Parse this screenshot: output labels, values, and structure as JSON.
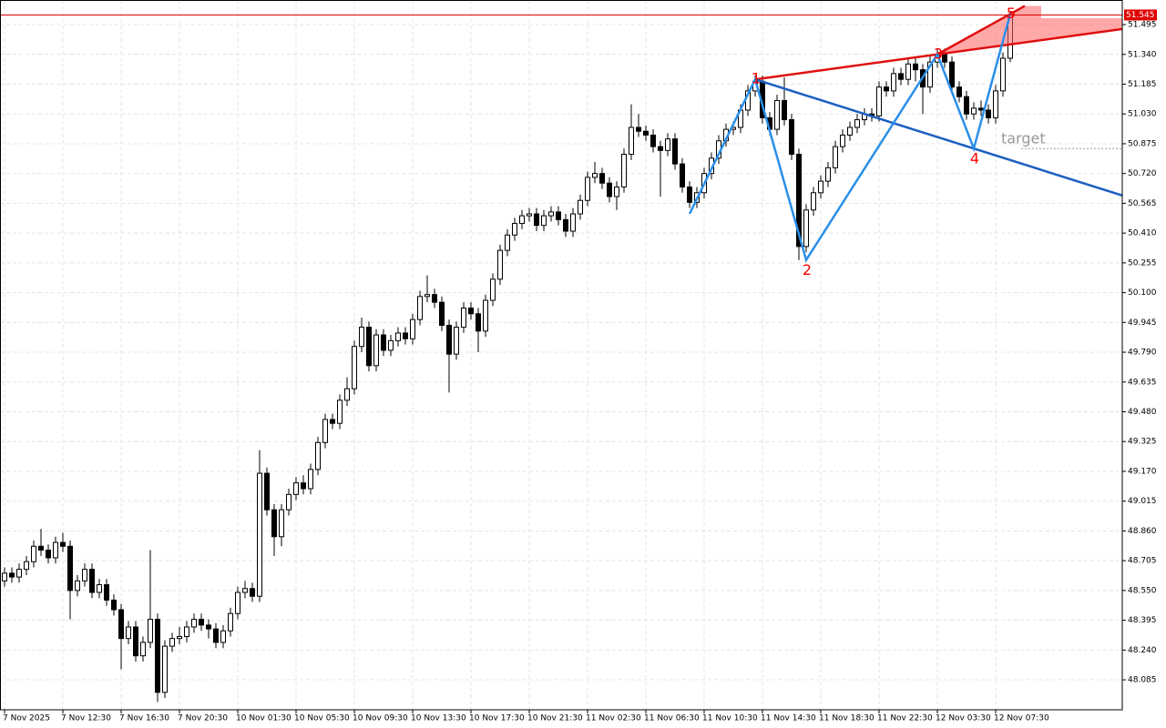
{
  "chart_data": {
    "type": "candlestick",
    "categories": [
      "7 Nov 2025",
      null,
      null,
      null,
      null,
      null,
      null,
      null,
      "7 Nov 12:30",
      null,
      null,
      null,
      null,
      null,
      null,
      null,
      "7 Nov 16:30",
      null,
      null,
      null,
      null,
      null,
      null,
      null,
      "7 Nov 20:30",
      null,
      null,
      null,
      null,
      null,
      null,
      null,
      "10 Nov 01:30",
      null,
      null,
      null,
      null,
      null,
      null,
      null,
      "10 Nov 05:30",
      null,
      null,
      null,
      null,
      null,
      null,
      null,
      "10 Nov 09:30",
      null,
      null,
      null,
      null,
      null,
      null,
      null,
      "10 Nov 13:30",
      null,
      null,
      null,
      null,
      null,
      null,
      null,
      "10 Nov 17:30",
      null,
      null,
      null,
      null,
      null,
      null,
      null,
      "10 Nov 21:30",
      null,
      null,
      null,
      null,
      null,
      null,
      null,
      "11 Nov 02:30",
      null,
      null,
      null,
      null,
      null,
      null,
      null,
      "11 Nov 06:30",
      null,
      null,
      null,
      null,
      null,
      null,
      null,
      "11 Nov 10:30",
      null,
      null,
      null,
      null,
      null,
      null,
      null,
      "11 Nov 14:30",
      null,
      null,
      null,
      null,
      null,
      null,
      null,
      "11 Nov 18:30",
      null,
      null,
      null,
      null,
      null,
      null,
      null,
      "11 Nov 22:30",
      null,
      null,
      null,
      null,
      null,
      null,
      null,
      "12 Nov 03:30",
      null,
      null,
      null,
      null,
      null,
      null,
      null,
      "12 Nov 07:30",
      null,
      null
    ],
    "open": [
      48.6,
      48.64,
      48.62,
      48.66,
      48.7,
      48.78,
      48.76,
      48.72,
      48.8,
      48.78,
      48.55,
      48.6,
      48.66,
      48.54,
      48.58,
      48.5,
      48.45,
      48.3,
      48.36,
      48.21,
      48.28,
      48.4,
      48.02,
      48.26,
      48.3,
      48.31,
      48.36,
      48.4,
      48.37,
      48.35,
      48.28,
      48.34,
      48.43,
      48.54,
      48.56,
      48.52,
      49.16,
      48.97,
      48.83,
      48.97,
      49.05,
      49.11,
      49.08,
      49.18,
      49.32,
      49.44,
      49.42,
      49.54,
      49.6,
      49.82,
      49.92,
      49.72,
      49.88,
      49.8,
      49.85,
      49.89,
      49.86,
      49.96,
      50.08,
      50.09,
      50.05,
      49.93,
      49.78,
      49.92,
      50.02,
      49.99,
      49.9,
      50.06,
      50.17,
      50.32,
      50.4,
      50.46,
      50.5,
      50.51,
      50.45,
      50.5,
      50.52,
      50.48,
      50.42,
      50.51,
      50.58,
      50.7,
      50.72,
      50.67,
      50.6,
      50.65,
      50.82,
      50.96,
      50.94,
      50.92,
      50.86,
      50.84,
      50.9,
      50.77,
      50.65,
      50.57,
      50.62,
      50.72,
      50.8,
      50.89,
      50.95,
      50.96,
      51.05,
      51.15,
      51.2,
      51.01,
      50.95,
      51.1,
      51.0,
      50.82,
      50.34,
      50.53,
      50.62,
      50.68,
      50.75,
      50.86,
      50.92,
      50.96,
      51.0,
      51.03,
      51.02,
      51.17,
      51.15,
      51.24,
      51.21,
      51.29,
      51.26,
      51.17,
      51.3,
      51.34,
      51.3,
      51.17,
      51.12,
      51.03,
      51.06,
      51.05,
      51.01,
      51.15,
      51.32
    ],
    "high": [
      48.67,
      48.67,
      48.69,
      48.73,
      48.81,
      48.87,
      48.79,
      48.83,
      48.85,
      48.81,
      48.63,
      48.69,
      48.69,
      48.61,
      48.61,
      48.53,
      48.48,
      48.39,
      48.39,
      48.31,
      48.76,
      48.43,
      48.29,
      48.33,
      48.36,
      48.39,
      48.43,
      48.43,
      48.4,
      48.38,
      48.37,
      48.46,
      48.57,
      48.6,
      48.59,
      49.28,
      49.19,
      49.0,
      49.0,
      49.08,
      49.14,
      49.15,
      49.21,
      49.35,
      49.47,
      49.47,
      49.57,
      49.66,
      49.85,
      49.97,
      49.95,
      49.91,
      49.91,
      49.88,
      49.92,
      49.92,
      49.99,
      50.11,
      50.19,
      50.12,
      50.08,
      49.96,
      49.95,
      50.05,
      50.05,
      50.02,
      50.09,
      50.2,
      50.35,
      50.43,
      50.49,
      50.53,
      50.54,
      50.54,
      50.53,
      50.55,
      50.55,
      50.51,
      50.54,
      50.61,
      50.73,
      50.78,
      50.75,
      50.7,
      50.68,
      50.85,
      51.08,
      51.03,
      50.97,
      50.95,
      50.89,
      50.93,
      50.93,
      50.8,
      50.68,
      50.65,
      50.75,
      50.83,
      50.92,
      50.98,
      50.99,
      51.08,
      51.18,
      51.23,
      51.23,
      51.04,
      51.13,
      51.22,
      51.03,
      50.85,
      50.56,
      50.65,
      50.71,
      50.78,
      50.89,
      50.95,
      50.99,
      51.03,
      51.06,
      51.06,
      51.2,
      51.2,
      51.27,
      51.27,
      51.32,
      51.32,
      51.29,
      51.33,
      51.37,
      51.37,
      51.33,
      51.2,
      51.15,
      51.09,
      51.1,
      51.08,
      51.18,
      51.35,
      51.56
    ],
    "low": [
      48.57,
      48.59,
      48.59,
      48.63,
      48.67,
      48.73,
      48.69,
      48.69,
      48.75,
      48.4,
      48.52,
      48.57,
      48.51,
      48.51,
      48.47,
      48.42,
      48.14,
      48.27,
      48.18,
      48.18,
      48.25,
      47.97,
      47.99,
      48.23,
      48.27,
      48.28,
      48.33,
      48.34,
      48.3,
      48.25,
      48.25,
      48.31,
      48.4,
      48.51,
      48.49,
      48.49,
      48.94,
      48.73,
      48.78,
      48.94,
      49.02,
      49.05,
      49.05,
      49.15,
      49.29,
      49.39,
      49.39,
      49.51,
      49.57,
      49.79,
      49.69,
      49.69,
      49.77,
      49.77,
      49.82,
      49.83,
      49.83,
      49.93,
      50.05,
      50.02,
      49.9,
      49.58,
      49.75,
      49.89,
      49.96,
      49.79,
      49.87,
      50.03,
      50.14,
      50.29,
      50.37,
      50.43,
      50.47,
      50.42,
      50.42,
      50.47,
      50.45,
      50.39,
      50.39,
      50.48,
      50.55,
      50.67,
      50.64,
      50.57,
      50.53,
      50.62,
      50.79,
      50.91,
      50.89,
      50.83,
      50.6,
      50.81,
      50.74,
      50.62,
      50.54,
      50.54,
      50.59,
      50.69,
      50.77,
      50.86,
      50.92,
      50.93,
      51.02,
      51.12,
      50.98,
      50.92,
      50.92,
      50.97,
      50.79,
      50.27,
      50.31,
      50.5,
      50.59,
      50.65,
      50.72,
      50.83,
      50.89,
      50.93,
      50.97,
      50.99,
      50.99,
      51.12,
      51.12,
      51.18,
      51.18,
      51.2,
      51.03,
      51.14,
      51.27,
      51.27,
      51.14,
      51.09,
      51.0,
      51.0,
      51.02,
      50.98,
      50.98,
      51.12,
      51.3
    ],
    "close": [
      48.64,
      48.62,
      48.66,
      48.7,
      48.78,
      48.76,
      48.72,
      48.8,
      48.78,
      48.55,
      48.6,
      48.66,
      48.54,
      48.58,
      48.5,
      48.45,
      48.3,
      48.36,
      48.21,
      48.28,
      48.4,
      48.02,
      48.26,
      48.3,
      48.31,
      48.36,
      48.4,
      48.37,
      48.35,
      48.28,
      48.34,
      48.43,
      48.54,
      48.56,
      48.52,
      49.16,
      48.97,
      48.83,
      48.97,
      49.05,
      49.11,
      49.08,
      49.18,
      49.32,
      49.44,
      49.42,
      49.54,
      49.6,
      49.82,
      49.92,
      49.72,
      49.88,
      49.8,
      49.85,
      49.89,
      49.86,
      49.96,
      50.08,
      50.09,
      50.05,
      49.93,
      49.78,
      49.92,
      50.02,
      49.99,
      49.9,
      50.06,
      50.17,
      50.32,
      50.4,
      50.46,
      50.5,
      50.51,
      50.45,
      50.5,
      50.52,
      50.48,
      50.42,
      50.51,
      50.58,
      50.7,
      50.72,
      50.67,
      50.6,
      50.65,
      50.82,
      50.96,
      50.94,
      50.92,
      50.86,
      50.84,
      50.9,
      50.77,
      50.65,
      50.57,
      50.62,
      50.72,
      50.8,
      50.89,
      50.95,
      50.96,
      51.05,
      51.15,
      51.2,
      51.01,
      50.95,
      51.1,
      51.0,
      50.82,
      50.34,
      50.53,
      50.62,
      50.68,
      50.75,
      50.86,
      50.92,
      50.96,
      51.0,
      51.03,
      51.02,
      51.17,
      51.15,
      51.24,
      51.21,
      51.29,
      51.26,
      51.17,
      51.3,
      51.34,
      51.3,
      51.17,
      51.12,
      51.03,
      51.06,
      51.05,
      51.01,
      51.15,
      51.32,
      51.545
    ],
    "bull_color": "#ffffff",
    "bear_color": "#000000",
    "wick_color": "#000000",
    "ylim": [
      47.929,
      51.623
    ],
    "yticks": [
      {
        "value": 48.085,
        "label": "48.085"
      },
      {
        "value": 48.24,
        "label": "48.240"
      },
      {
        "value": 48.395,
        "label": "48.395"
      },
      {
        "value": 48.55,
        "label": "48.550"
      },
      {
        "value": 48.705,
        "label": "48.705"
      },
      {
        "value": 48.86,
        "label": "48.860"
      },
      {
        "value": 49.015,
        "label": "49.015"
      },
      {
        "value": 49.17,
        "label": "49.170"
      },
      {
        "value": 49.325,
        "label": "49.325"
      },
      {
        "value": 49.48,
        "label": "49.480"
      },
      {
        "value": 49.635,
        "label": "49.635"
      },
      {
        "value": 49.79,
        "label": "49.790"
      },
      {
        "value": 49.945,
        "label": "49.945"
      },
      {
        "value": 50.1,
        "label": "50.100"
      },
      {
        "value": 50.255,
        "label": "50.255"
      },
      {
        "value": 50.41,
        "label": "50.410"
      },
      {
        "value": 50.565,
        "label": "50.565"
      },
      {
        "value": 50.72,
        "label": "50.720"
      },
      {
        "value": 50.875,
        "label": "50.875"
      },
      {
        "value": 51.03,
        "label": "51.030"
      },
      {
        "value": 51.185,
        "label": "51.185"
      },
      {
        "value": 51.34,
        "label": "51.340"
      },
      {
        "value": 51.495,
        "label": "51.495"
      }
    ],
    "grid": true,
    "price": 51.545,
    "price_color": "#e00000",
    "wave": {
      "x": [
        94,
        103,
        110,
        128,
        133,
        138
      ],
      "y": [
        50.51,
        51.21,
        50.27,
        51.34,
        50.85,
        51.55
      ],
      "labels": [
        "1",
        "2",
        "3",
        "4",
        "5"
      ],
      "color": "#2a8fe8",
      "label_color": "#ff0000"
    },
    "channel_color": "#e01010",
    "lower_line_color": "#1a5fc0",
    "target": {
      "label": "target",
      "value": 50.85
    }
  }
}
